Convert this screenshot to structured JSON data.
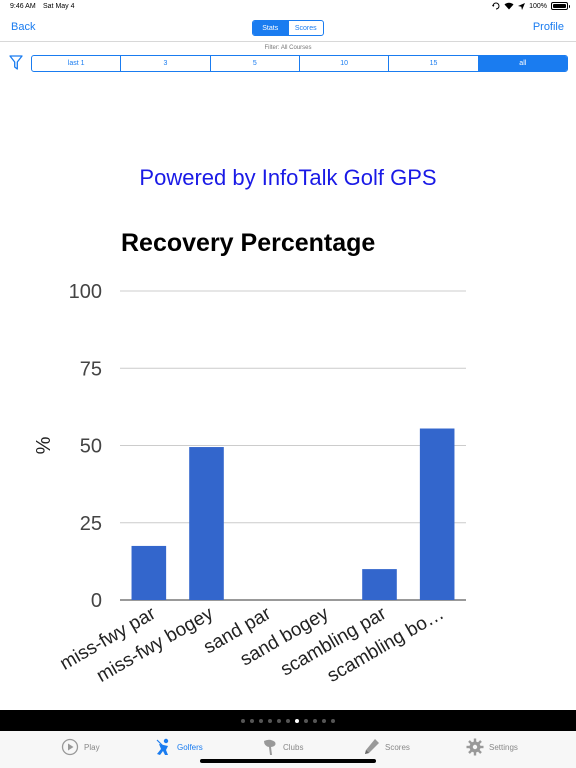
{
  "status": {
    "time": "9:46 AM",
    "date": "Sat May 4",
    "battery": "100%"
  },
  "nav": {
    "back": "Back",
    "profile": "Profile",
    "segments": [
      "Stats",
      "Scores"
    ],
    "active_segment": 0
  },
  "filter": {
    "label": "Filter: All Courses",
    "ranges": [
      "last 1",
      "3",
      "5",
      "10",
      "15",
      "all"
    ],
    "active_range": 5
  },
  "banner": "Powered by InfoTalk Golf GPS",
  "chart_data": {
    "type": "bar",
    "title": "Recovery Percentage",
    "ylabel": "%",
    "xlabel": "",
    "categories": [
      "miss-fwy par",
      "miss-fwy bogey",
      "sand par",
      "sand bogey",
      "scambling par",
      "scambling bo…"
    ],
    "values": [
      17.5,
      49.5,
      0,
      0,
      10,
      55.5
    ],
    "yticks": [
      0,
      25,
      50,
      75,
      100
    ],
    "ylim": [
      0,
      100
    ],
    "grid": true,
    "bar_color": "#3366cc"
  },
  "pager": {
    "count": 11,
    "active": 6
  },
  "tabs": [
    {
      "label": "Play",
      "icon": "play-icon",
      "active": false
    },
    {
      "label": "Golfers",
      "icon": "golfer-icon",
      "active": true
    },
    {
      "label": "Clubs",
      "icon": "club-icon",
      "active": false
    },
    {
      "label": "Scores",
      "icon": "pencil-icon",
      "active": false
    },
    {
      "label": "Settings",
      "icon": "gear-icon",
      "active": false
    }
  ]
}
